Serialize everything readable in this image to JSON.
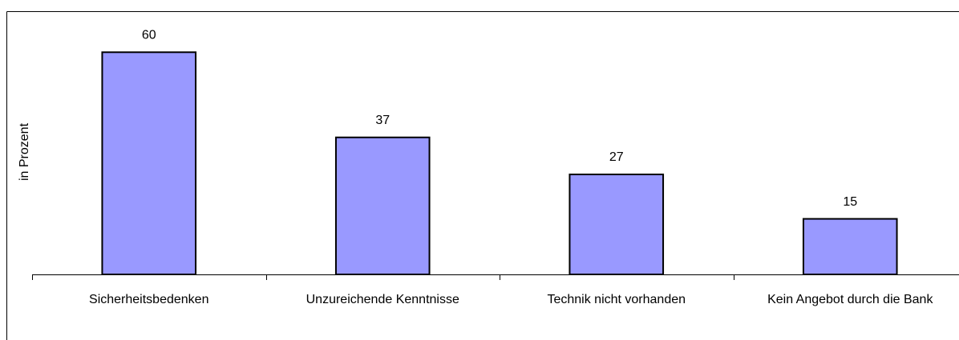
{
  "chart_data": {
    "type": "bar",
    "ylabel": "in Prozent",
    "categories": [
      "Sicherheitsbedenken",
      "Unzureichende Kenntnisse",
      "Technik nicht vorhanden",
      "Kein Angebot durch die Bank"
    ],
    "values": [
      60,
      37,
      27,
      15
    ],
    "color": "#9999ff",
    "ylim": [
      0,
      70
    ],
    "grid": false
  }
}
